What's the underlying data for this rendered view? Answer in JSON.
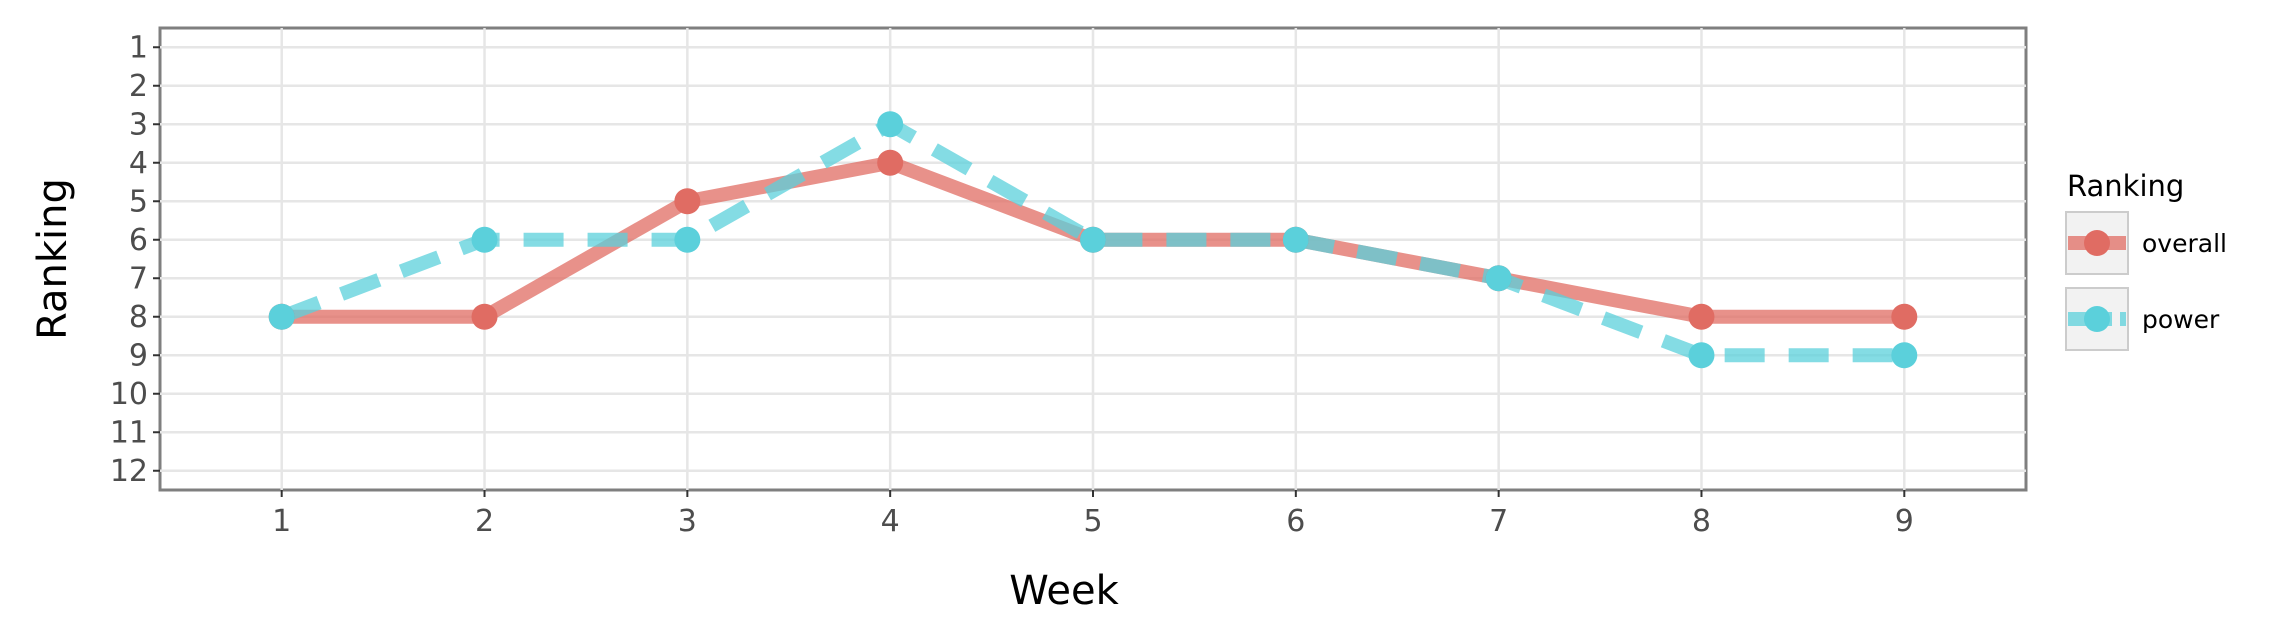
{
  "chart_data": {
    "type": "line",
    "xlabel": "Week",
    "ylabel": "Ranking",
    "x": [
      1,
      2,
      3,
      4,
      5,
      6,
      7,
      8,
      9
    ],
    "xlim": [
      0.4,
      9.6
    ],
    "ylim": [
      12.5,
      0.5
    ],
    "y_reversed": true,
    "x_ticks": [
      "1",
      "2",
      "3",
      "4",
      "5",
      "6",
      "7",
      "8",
      "9"
    ],
    "y_ticks": [
      "1",
      "2",
      "3",
      "4",
      "5",
      "6",
      "7",
      "8",
      "9",
      "10",
      "11",
      "12"
    ],
    "grid": true,
    "legend": {
      "title": "Ranking",
      "placement": "right"
    },
    "series": [
      {
        "name": "overall",
        "values": [
          8,
          8,
          5,
          4,
          6,
          6,
          7,
          8,
          8
        ],
        "color": "#e06c63",
        "line_style": "solid"
      },
      {
        "name": "power",
        "values": [
          8,
          6,
          6,
          3,
          6,
          6,
          7,
          9,
          9
        ],
        "color": "#5bd0db",
        "line_style": "dashed"
      }
    ]
  }
}
